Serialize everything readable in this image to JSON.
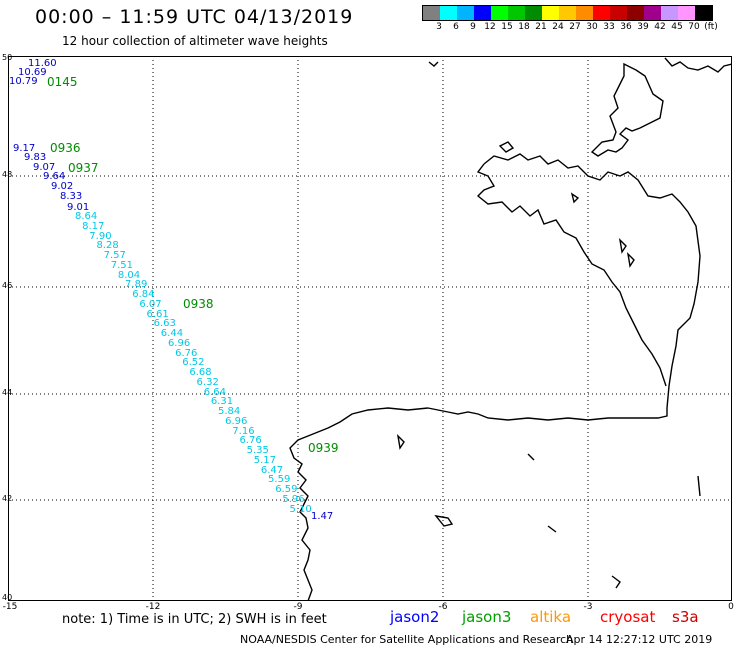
{
  "header": {
    "title": "00:00 – 11:59 UTC 04/13/2019",
    "subtitle": "12 hour collection of altimeter wave heights"
  },
  "legend": {
    "colors": [
      "#808080",
      "#00ffff",
      "#00b4ff",
      "#0000ff",
      "#00ff00",
      "#00c800",
      "#008c00",
      "#ffff00",
      "#ffc800",
      "#ff8c00",
      "#ff0000",
      "#c80000",
      "#8c0000",
      "#a0008c",
      "#c896ff",
      "#ff96ff",
      "#000000"
    ],
    "labels": [
      "3",
      "6",
      "9",
      "12",
      "15",
      "18",
      "21",
      "24",
      "27",
      "30",
      "33",
      "36",
      "39",
      "42",
      "45",
      "70",
      "(ft)"
    ]
  },
  "axes": {
    "lat_labels": [
      "50",
      "48",
      "46",
      "44",
      "42",
      "40"
    ],
    "lon_labels": [
      "-15",
      "-12",
      "-9",
      "-6",
      "-3",
      "0"
    ]
  },
  "track_labels": {
    "times": [
      "0145",
      "0936",
      "0937",
      "0938",
      "0939"
    ],
    "swh_dark": [
      "11.60",
      "10.69",
      "10.79",
      "9.17",
      "9.83",
      "9.07",
      "9.64",
      "9.02",
      "8.33",
      "9.01"
    ],
    "swh_cyan": [
      "8.64",
      "8.17",
      "7.90",
      "8.28",
      "7.57",
      "7.51",
      "8.04",
      "7.89",
      "6.84",
      "6.07",
      "6.61",
      "6.63",
      "6.44",
      "6.96",
      "6.76",
      "6.52",
      "6.68",
      "6.32",
      "6.64",
      "6.31",
      "5.84",
      "6.96",
      "7.16",
      "6.76",
      "5.35",
      "5.17",
      "6.47",
      "5.59",
      "6.59",
      "5.96",
      "5.10"
    ],
    "swh_last": "1.47"
  },
  "footer": {
    "note": "note:  1) Time is in UTC;  2) SWH is in feet",
    "satellites": [
      {
        "name": "jason2",
        "color": "#0000ff"
      },
      {
        "name": "jason3",
        "color": "#00a000"
      },
      {
        "name": "altika",
        "color": "#ff9900"
      },
      {
        "name": "cryosat",
        "color": "#ff0000"
      },
      {
        "name": "s3a",
        "color": "#cc0000"
      }
    ],
    "credit": "NOAA/NESDIS Center for Satellite Applications and Research",
    "stamp": "Apr 14 12:27:12 UTC 2019"
  }
}
